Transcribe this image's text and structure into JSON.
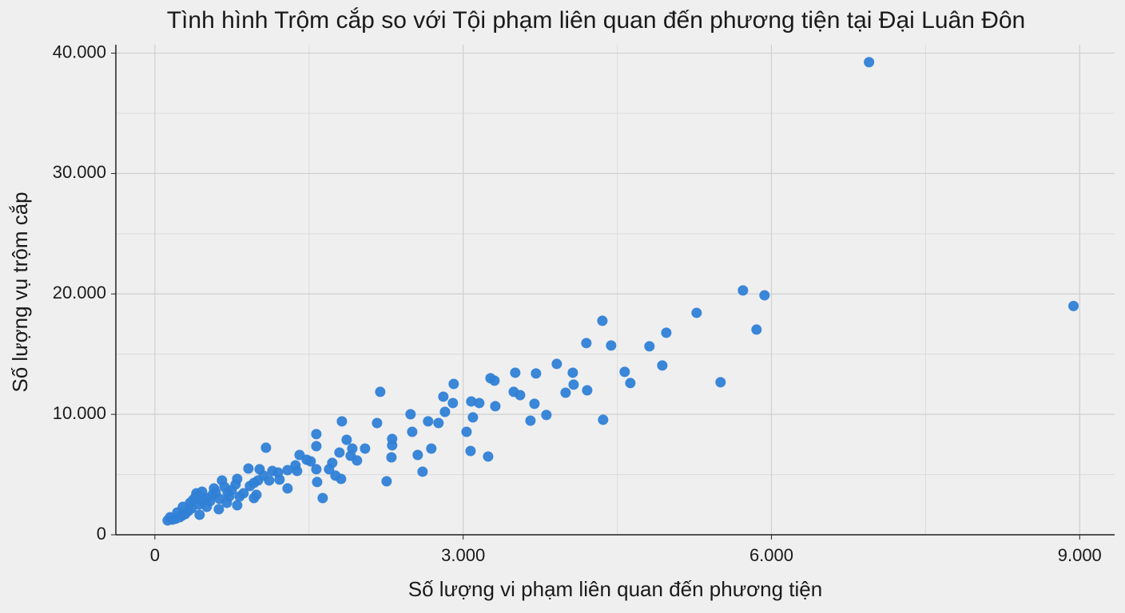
{
  "chart_data": {
    "type": "scatter",
    "title": "Tình hình Trộm cắp so với Tội phạm liên quan đến phương tiện tại Đại Luân Đôn",
    "x_label": "Số lượng vi phạm liên quan đến phương tiện",
    "y_label": "Số lượng vụ trộm cắp",
    "color": "#2f7fd6",
    "grid": true,
    "xlim": [
      -380,
      9340
    ],
    "ylim": [
      0,
      40700
    ],
    "xticks": [
      0,
      {
        "value": 3000,
        "label": "3.000"
      },
      {
        "value": 6000,
        "label": "6.000"
      },
      {
        "value": 9000,
        "label": "9.000"
      }
    ],
    "yticks": [
      0,
      {
        "value": 10000,
        "label": "10.000"
      },
      {
        "value": 20000,
        "label": "20.000"
      },
      {
        "value": 30000,
        "label": "30.000"
      },
      {
        "value": 40000,
        "label": "40.000"
      }
    ],
    "xminorticks": [
      1500,
      4500,
      7500
    ],
    "yminorticks": [
      5000,
      15000,
      25000,
      35000
    ],
    "x": [
      6950,
      8940,
      5723,
      5933,
      5272,
      5855,
      5505,
      4977,
      4938,
      4813,
      4572,
      4627,
      4355,
      4440,
      4199,
      4362,
      4207,
      4075,
      4067,
      3997,
      3911,
      3709,
      3810,
      3694,
      3655,
      3554,
      3507,
      3492,
      3313,
      3305,
      3266,
      3157,
      3079,
      3095,
      3072,
      3243,
      3033,
      2908,
      2900,
      2807,
      2823,
      2760,
      2659,
      2690,
      2558,
      2605,
      2504,
      2488,
      2309,
      2309,
      2302,
      2255,
      2193,
      2162,
      2045,
      1967,
      1905,
      1921,
      1866,
      1820,
      1796,
      1812,
      1757,
      1726,
      1695,
      1633,
      1579,
      1571,
      1571,
      1571,
      1516,
      1477,
      1408,
      1384,
      1368,
      1291,
      1291,
      1213,
      1198,
      1143,
      1112,
      1081,
      1058,
      1019,
      1003,
      964,
      964,
      988,
      910,
      925,
      863,
      801,
      785,
      747,
      723,
      708,
      677,
      653,
      630,
      591,
      537,
      498,
      467,
      428,
      397,
      358,
      327,
      295,
      264,
      241,
      202,
      171,
      218,
      342,
      435,
      560,
      801,
      622,
      824,
      459,
      575,
      700,
      373,
      272,
      124,
      148,
      404,
      505
    ],
    "values": [
      39250,
      19000,
      20290,
      19890,
      18430,
      17040,
      12670,
      16780,
      14060,
      15650,
      13530,
      12600,
      17770,
      15720,
      15920,
      9550,
      12000,
      12470,
      13460,
      11800,
      14190,
      13400,
      9950,
      10880,
      9480,
      11600,
      13460,
      11870,
      10680,
      12800,
      13000,
      10940,
      11070,
      9750,
      6960,
      6500,
      8550,
      12530,
      10940,
      11470,
      10210,
      9280,
      9420,
      7160,
      6630,
      5240,
      8550,
      10010,
      7960,
      7430,
      6430,
      4440,
      11870,
      9280,
      7160,
      6170,
      6560,
      7160,
      7890,
      9420,
      6830,
      4640,
      4910,
      5970,
      5440,
      3050,
      4380,
      8360,
      7360,
      5440,
      6100,
      6230,
      6630,
      5300,
      5770,
      3850,
      5370,
      4580,
      5170,
      5300,
      4510,
      7230,
      4910,
      5440,
      4510,
      4310,
      3050,
      3320,
      5500,
      4050,
      3450,
      4640,
      4180,
      3710,
      3180,
      3510,
      3980,
      4510,
      2980,
      3510,
      2790,
      3050,
      2790,
      2520,
      3180,
      2190,
      1990,
      1720,
      1590,
      1460,
      1330,
      1260,
      1860,
      2650,
      1660,
      3320,
      2450,
      2120,
      3180,
      3580,
      3850,
      2650,
      2920,
      2320,
      1190,
      1460,
      3450,
      2320
    ]
  }
}
